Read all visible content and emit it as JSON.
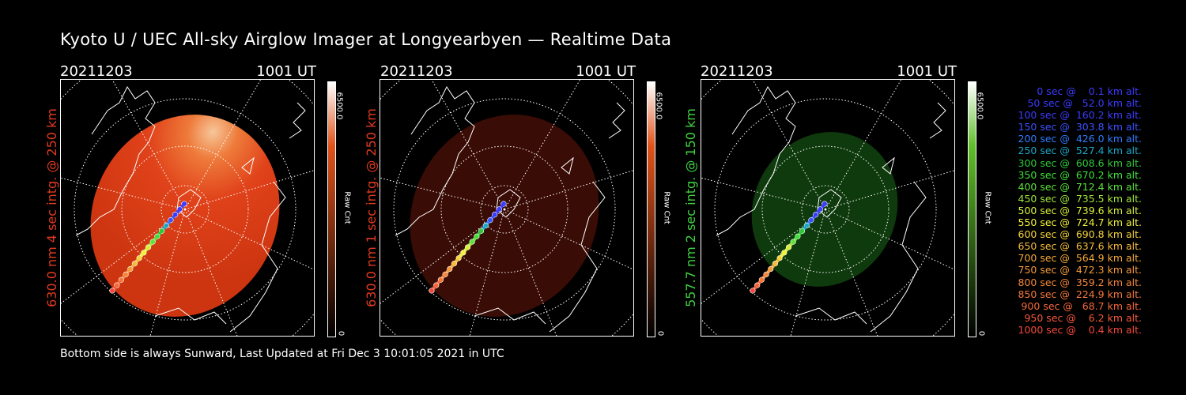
{
  "title": "Kyoto U / UEC All-sky Airglow Imager at Longyearbyen — Realtime Data",
  "footer": "Bottom side is always Sunward, Last Updated at Fri Dec  3 10:01:05 2021 in UTC",
  "panels": [
    {
      "date": "20211203",
      "time": "1001 UT",
      "ylabel": "630.0 nm 4 sec intg. @ 250 km",
      "label_color": "#e03a1e",
      "cbar_max": "6500.0",
      "cbar_min": "0",
      "cbar_unit": "Raw Cnt",
      "cbar_color": "#e0531a",
      "style": "red-bright"
    },
    {
      "date": "20211203",
      "time": "1001 UT",
      "ylabel": "630.0 nm 1 sec intg. @ 250 km",
      "label_color": "#e03a1e",
      "cbar_max": "6500.0",
      "cbar_min": "0",
      "cbar_unit": "Raw Cnt",
      "cbar_color": "#e0531a",
      "style": "red-dim"
    },
    {
      "date": "20211203",
      "time": "1001 UT",
      "ylabel": "557.7 nm 2 sec intg. @ 150 km",
      "label_color": "#3fd13f",
      "cbar_max": "6500.0",
      "cbar_min": "0",
      "cbar_unit": "Raw Cnt",
      "cbar_color": "#5fbf2a",
      "style": "green"
    }
  ],
  "legend": [
    {
      "text": "0 sec @    0.1 km alt.",
      "color": "#3b3bff"
    },
    {
      "text": "50 sec @   52.0 km alt.",
      "color": "#3b3bff"
    },
    {
      "text": "100 sec @  160.2 km alt.",
      "color": "#3b3bff"
    },
    {
      "text": "150 sec @  303.8 km alt.",
      "color": "#3b52ff"
    },
    {
      "text": "200 sec @  426.0 km alt.",
      "color": "#2f7cff"
    },
    {
      "text": "250 sec @  527.4 km alt.",
      "color": "#1aa7c8"
    },
    {
      "text": "300 sec @  608.6 km alt.",
      "color": "#2ec83a"
    },
    {
      "text": "350 sec @  670.2 km alt.",
      "color": "#3ee03a"
    },
    {
      "text": "400 sec @  712.4 km alt.",
      "color": "#5be33a"
    },
    {
      "text": "450 sec @  735.5 km alt.",
      "color": "#a0e63a"
    },
    {
      "text": "500 sec @  739.6 km alt.",
      "color": "#d8ef3a"
    },
    {
      "text": "550 sec @  724.7 km alt.",
      "color": "#f2f23a"
    },
    {
      "text": "600 sec @  690.8 km alt.",
      "color": "#f5d43a"
    },
    {
      "text": "650 sec @  637.6 km alt.",
      "color": "#f5bb3a"
    },
    {
      "text": "700 sec @  564.9 km alt.",
      "color": "#f5a83a"
    },
    {
      "text": "750 sec @  472.3 km alt.",
      "color": "#f59a3a"
    },
    {
      "text": "800 sec @  359.2 km alt.",
      "color": "#f5873a"
    },
    {
      "text": "850 sec @  224.9 km alt.",
      "color": "#f5783a"
    },
    {
      "text": "900 sec @   68.7 km alt.",
      "color": "#f5683a"
    },
    {
      "text": "950 sec @    6.2 km alt.",
      "color": "#f5583a"
    },
    {
      "text": "1000 sec @    0.4 km alt.",
      "color": "#f5483a"
    }
  ]
}
